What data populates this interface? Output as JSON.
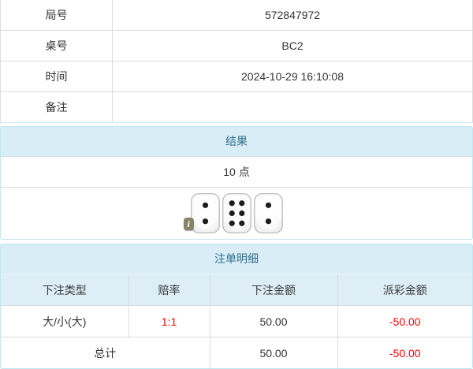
{
  "info_table": {
    "rows": [
      {
        "label": "局号",
        "value": "572847972"
      },
      {
        "label": "桌号",
        "value": "BC2"
      },
      {
        "label": "时间",
        "value": "2024-10-29 16:10:08"
      },
      {
        "label": "备注",
        "value": ""
      }
    ]
  },
  "result_panel": {
    "title": "结果",
    "points": "10 点",
    "dice": [
      2,
      6,
      2
    ],
    "info_badge": "i"
  },
  "bets_panel": {
    "title": "注单明细",
    "columns": [
      "下注类型",
      "赔率",
      "下注金额",
      "派彩金额"
    ],
    "rows": [
      {
        "bet_type": "大/小(大)",
        "odds": "1:1",
        "bet_amount": "50.00",
        "payout": "-50.00"
      }
    ],
    "total": {
      "label": "总计",
      "bet_amount": "50.00",
      "payout": "-50.00"
    }
  },
  "colors": {
    "panel_border": "#bce8f1",
    "panel_heading_bg": "#d9edf7",
    "panel_heading_text": "#31708f",
    "table_header_bg": "#ddeef7",
    "grid_border": "#dddddd",
    "negative_red": "#ff0000",
    "text": "#333333"
  }
}
